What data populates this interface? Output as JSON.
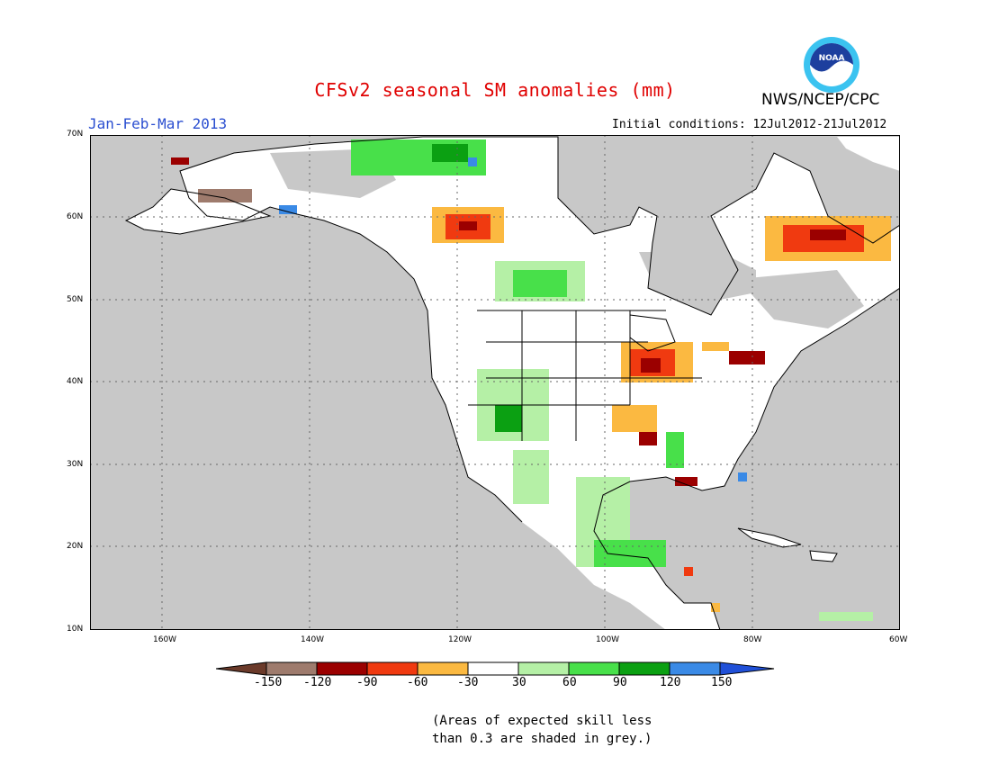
{
  "header": {
    "title": "CFSv2 seasonal SM anomalies (mm)",
    "season": "Jan-Feb-Mar 2013",
    "agency": "NWS/NCEP/CPC",
    "logo_text": "NOAA",
    "initial_conditions": "Initial conditions: 12Jul2012-21Jul2012"
  },
  "map": {
    "lat_labels": [
      "70N",
      "60N",
      "50N",
      "40N",
      "30N",
      "20N",
      "10N"
    ],
    "lon_labels": [
      "160W",
      "140W",
      "120W",
      "100W",
      "80W",
      "60W"
    ],
    "grey_meaning": "low skill",
    "colors": {
      "ocean": "#ffffff",
      "low_skill": "#c8c8c8",
      "land_outline": "#000000"
    }
  },
  "colorbar": {
    "ticks": [
      "-150",
      "-120",
      "-90",
      "-60",
      "-30",
      "30",
      "60",
      "90",
      "120",
      "150"
    ],
    "bins": [
      {
        "color": "#6b3a2a"
      },
      {
        "color": "#9e7b6d"
      },
      {
        "color": "#9b0000"
      },
      {
        "color": "#f03a10"
      },
      {
        "color": "#fbb941"
      },
      {
        "color": "#ffffff"
      },
      {
        "color": "#b5f0a6"
      },
      {
        "color": "#48e04a"
      },
      {
        "color": "#0ba012"
      },
      {
        "color": "#3a8ae6"
      },
      {
        "color": "#2050d8"
      }
    ]
  },
  "footnote": {
    "line1": "(Areas of expected skill less",
    "line2": "than 0.3 are shaded in grey.)"
  }
}
